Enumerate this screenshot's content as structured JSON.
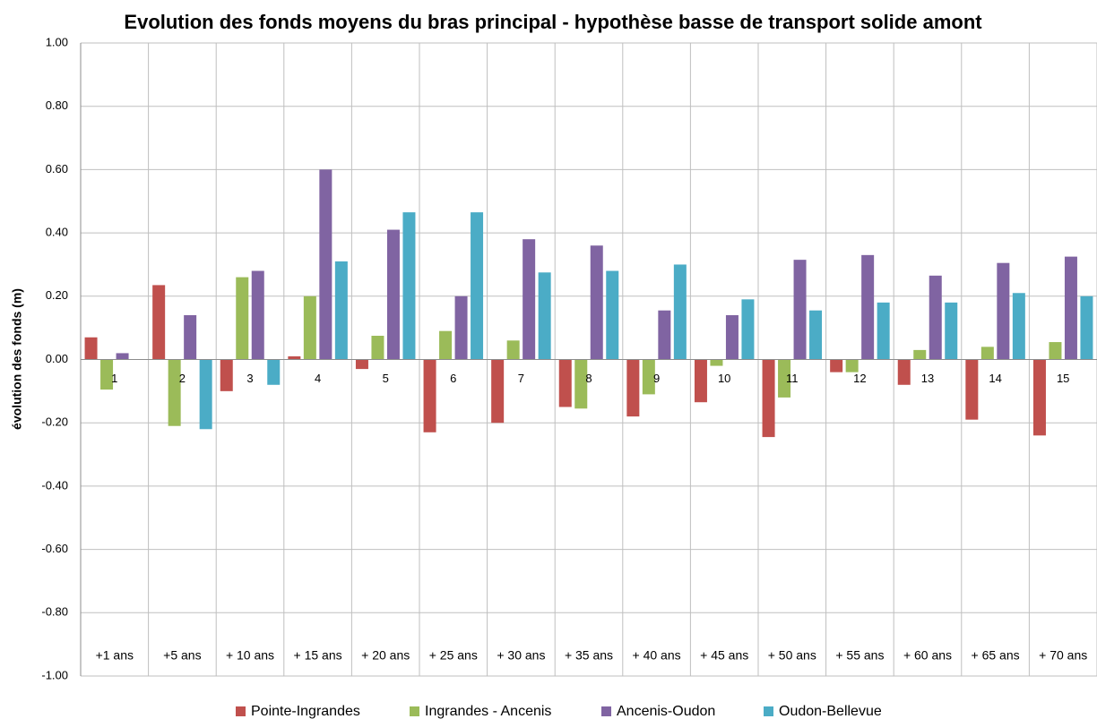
{
  "chart_data": {
    "type": "bar",
    "title": "Evolution des fonds moyens du bras principal - hypothèse basse de transport solide amont",
    "ylabel": "évolution des fonds (m)",
    "categories": [
      "1",
      "2",
      "3",
      "4",
      "5",
      "6",
      "7",
      "8",
      "9",
      "10",
      "11",
      "12",
      "13",
      "14",
      "15"
    ],
    "periods": [
      "+1 ans",
      "+5 ans",
      "+ 10 ans",
      "+ 15 ans",
      "+ 20 ans",
      "+ 25 ans",
      "+ 30 ans",
      "+ 35 ans",
      "+ 40 ans",
      "+ 45 ans",
      "+ 50 ans",
      "+ 55 ans",
      "+ 60 ans",
      "+ 65 ans",
      "+ 70 ans"
    ],
    "series": [
      {
        "name": "Pointe-Ingrandes",
        "color": "#c0504d",
        "values": [
          0.07,
          0.235,
          -0.1,
          0.01,
          -0.03,
          -0.23,
          -0.2,
          -0.15,
          -0.18,
          -0.135,
          -0.245,
          -0.04,
          -0.08,
          -0.19,
          -0.24
        ]
      },
      {
        "name": "Ingrandes - Ancenis",
        "color": "#9bbb59",
        "values": [
          -0.095,
          -0.21,
          0.26,
          0.2,
          0.075,
          0.09,
          0.06,
          -0.155,
          -0.11,
          -0.02,
          -0.12,
          -0.04,
          0.03,
          0.04,
          0.055
        ]
      },
      {
        "name": "Ancenis-Oudon",
        "color": "#8064a2",
        "values": [
          0.02,
          0.14,
          0.28,
          0.6,
          0.41,
          0.2,
          0.38,
          0.36,
          0.155,
          0.14,
          0.315,
          0.33,
          0.265,
          0.305,
          0.325
        ]
      },
      {
        "name": "Oudon-Bellevue",
        "color": "#4bacc6",
        "values": [
          0,
          -0.22,
          -0.08,
          0.31,
          0.465,
          0.465,
          0.275,
          0.28,
          0.3,
          0.19,
          0.155,
          0.18,
          0.18,
          0.21,
          0.2
        ]
      }
    ],
    "ylim": [
      -1,
      1
    ],
    "yticks": [
      {
        "value": 1,
        "label": "1.00"
      },
      {
        "value": 0.8,
        "label": "0.80"
      },
      {
        "value": 0.6,
        "label": "0.60"
      },
      {
        "value": 0.4,
        "label": "0.40"
      },
      {
        "value": 0.2,
        "label": "0.20"
      },
      {
        "value": 0,
        "label": "0.00"
      },
      {
        "value": -0.2,
        "label": "-0.20"
      },
      {
        "value": -0.4,
        "label": "-0.40"
      },
      {
        "value": -0.6,
        "label": "-0.60"
      },
      {
        "value": -0.8,
        "label": "-0.80"
      },
      {
        "value": -1,
        "label": "-1.00"
      }
    ],
    "grid": true,
    "legend": "bottom"
  }
}
